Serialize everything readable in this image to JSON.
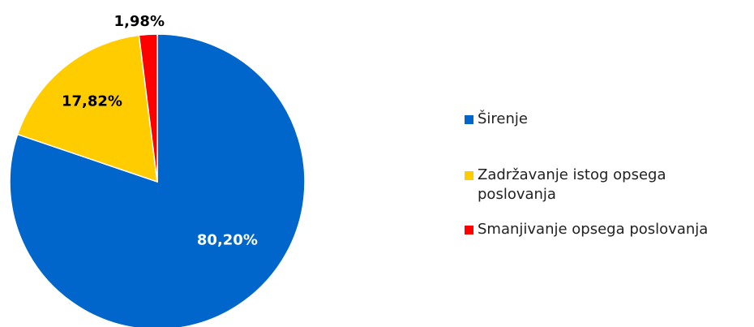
{
  "chart_data": {
    "type": "pie",
    "categories": [
      "Širenje",
      "Zadržavanje istog opsega poslovanja",
      "Smanjivanje opsega poslovanja"
    ],
    "values": [
      80.2,
      17.82,
      1.98
    ],
    "value_labels": [
      "80,20%",
      "17,82%",
      "1,98%"
    ],
    "colors": [
      "#0066cc",
      "#ffcc00",
      "#ff0000"
    ],
    "legend": "right"
  }
}
